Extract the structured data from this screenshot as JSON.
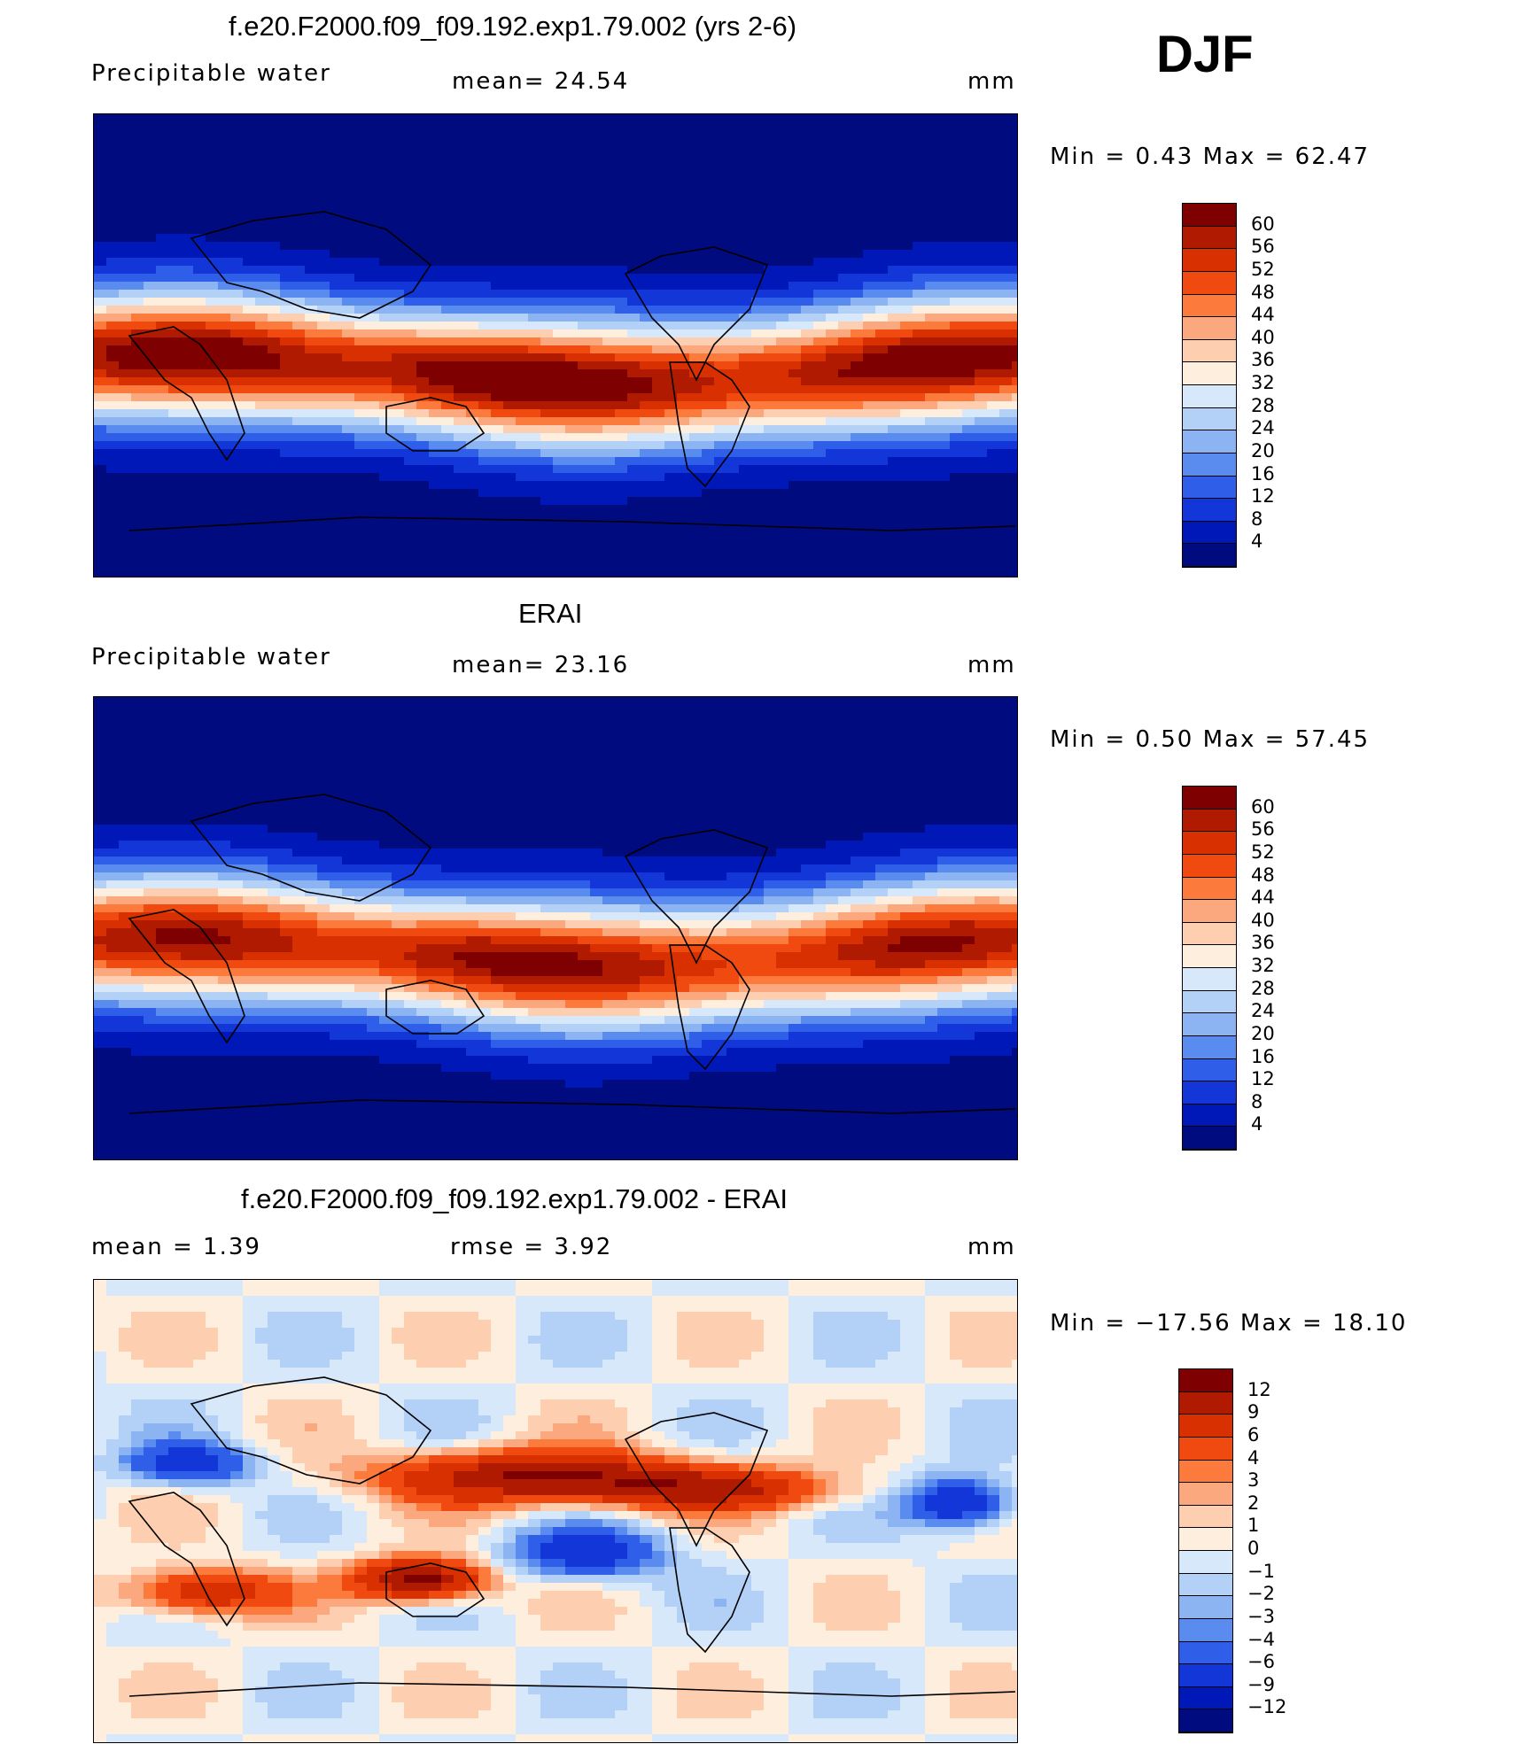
{
  "season": "DJF",
  "panels": [
    {
      "title": "f.e20.F2000.f09_f09.192.exp1.79.002 (yrs 2-6)",
      "left_label": "Precipitable  water",
      "mid_label": "mean=   24.54",
      "units": "mm",
      "minmax": "Min  =    0.43  Max  =    62.47",
      "colorbar": {
        "levels": [
          "60",
          "56",
          "52",
          "48",
          "44",
          "40",
          "36",
          "32",
          "28",
          "24",
          "20",
          "16",
          "12",
          "8",
          "4"
        ],
        "colors": [
          "#7f0000",
          "#b01a00",
          "#d83000",
          "#f04a10",
          "#fb7a3c",
          "#fca87e",
          "#fdcfb0",
          "#fdeedd",
          "#d7e8fb",
          "#b3d0f7",
          "#8cb3f2",
          "#5a8cf0",
          "#2f5ee8",
          "#1236d8",
          "#0018b8",
          "#000b80"
        ]
      },
      "map_mode": "pw"
    },
    {
      "title": "ERAI",
      "left_label": "Precipitable  water",
      "mid_label": "mean=   23.16",
      "units": "mm",
      "minmax": "Min  =    0.50  Max  =    57.45",
      "colorbar": {
        "levels": [
          "60",
          "56",
          "52",
          "48",
          "44",
          "40",
          "36",
          "32",
          "28",
          "24",
          "20",
          "16",
          "12",
          "8",
          "4"
        ],
        "colors": [
          "#7f0000",
          "#b01a00",
          "#d83000",
          "#f04a10",
          "#fb7a3c",
          "#fca87e",
          "#fdcfb0",
          "#fdeedd",
          "#d7e8fb",
          "#b3d0f7",
          "#8cb3f2",
          "#5a8cf0",
          "#2f5ee8",
          "#1236d8",
          "#0018b8",
          "#000b80"
        ]
      },
      "map_mode": "pw2"
    },
    {
      "title": "f.e20.F2000.f09_f09.192.exp1.79.002 - ERAI",
      "left_label": "mean  =     1.39",
      "mid_label": "rmse  =     3.92",
      "units": "mm",
      "minmax": "Min  = −17.56  Max  =    18.10",
      "colorbar": {
        "levels": [
          "12",
          "9",
          "6",
          "4",
          "3",
          "2",
          "1",
          "0",
          "−1",
          "−2",
          "−3",
          "−4",
          "−6",
          "−9",
          "−12"
        ],
        "colors": [
          "#7f0000",
          "#b01a00",
          "#d83000",
          "#f04a10",
          "#fb7a3c",
          "#fca87e",
          "#fdcfb0",
          "#fdeedd",
          "#d7e8fb",
          "#b3d0f7",
          "#8cb3f2",
          "#5a8cf0",
          "#2f5ee8",
          "#1236d8",
          "#0018b8",
          "#000b80"
        ]
      },
      "map_mode": "diff"
    }
  ]
}
